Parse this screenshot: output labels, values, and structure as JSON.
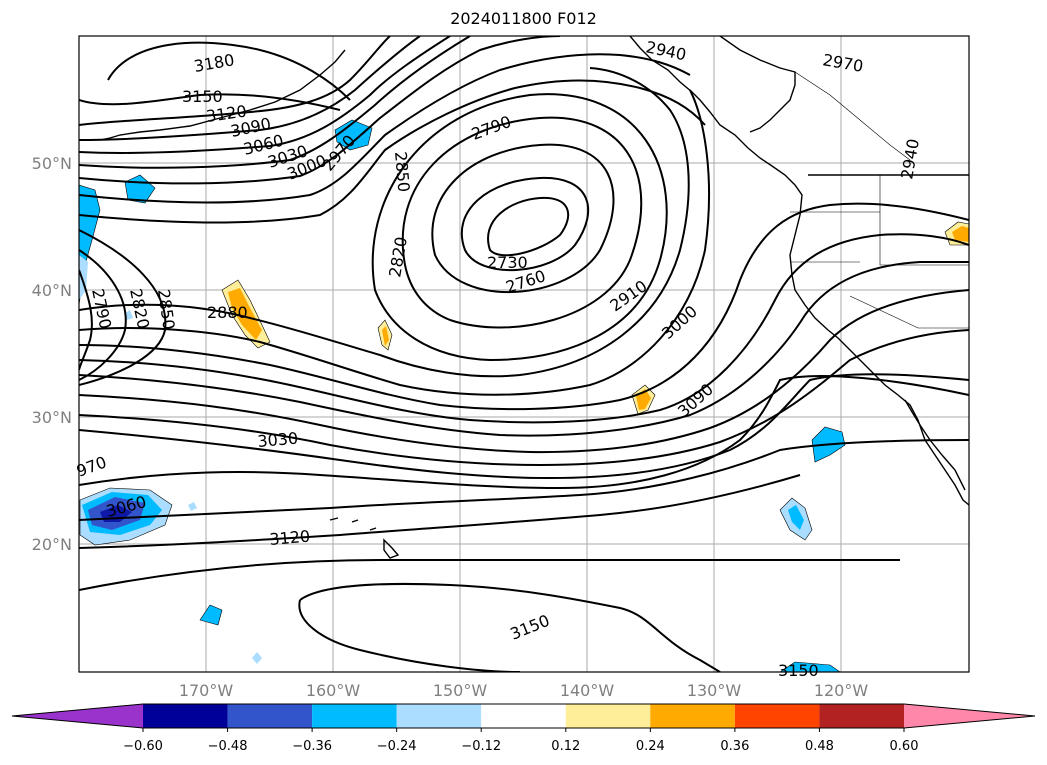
{
  "title": "2024011800 F012",
  "latitude_labels": [
    "50°N",
    "40°N",
    "30°N",
    "20°N"
  ],
  "longitude_labels": [
    "170°W",
    "160°W",
    "150°W",
    "140°W",
    "130°W",
    "120°W"
  ],
  "contour_labels": [
    "3180",
    "3150",
    "3120",
    "3090",
    "3060",
    "3030",
    "3000",
    "2970",
    "2940",
    "2970",
    "2940",
    "2850",
    "2820",
    "2790",
    "2730",
    "2760",
    "2910",
    "3000",
    "3090",
    "3030",
    "2880",
    "2790",
    "2820",
    "2850",
    "970",
    "3060",
    "3120",
    "3150",
    "3150"
  ],
  "colorbar": {
    "ticks": [
      "−0.60",
      "−0.48",
      "−0.36",
      "−0.24",
      "−0.12",
      "0.12",
      "0.24",
      "0.36",
      "0.48",
      "0.60"
    ],
    "colors": [
      "#9933cc",
      "#000099",
      "#3355cc",
      "#00bbff",
      "#aaddff",
      "#ffffff",
      "#ffee99",
      "#ffaa00",
      "#ff4400",
      "#b22222",
      "#ff88aa"
    ]
  },
  "colors": {
    "contour": "#000000",
    "gridline": "#aaaaaa",
    "coastline": "#000000"
  }
}
